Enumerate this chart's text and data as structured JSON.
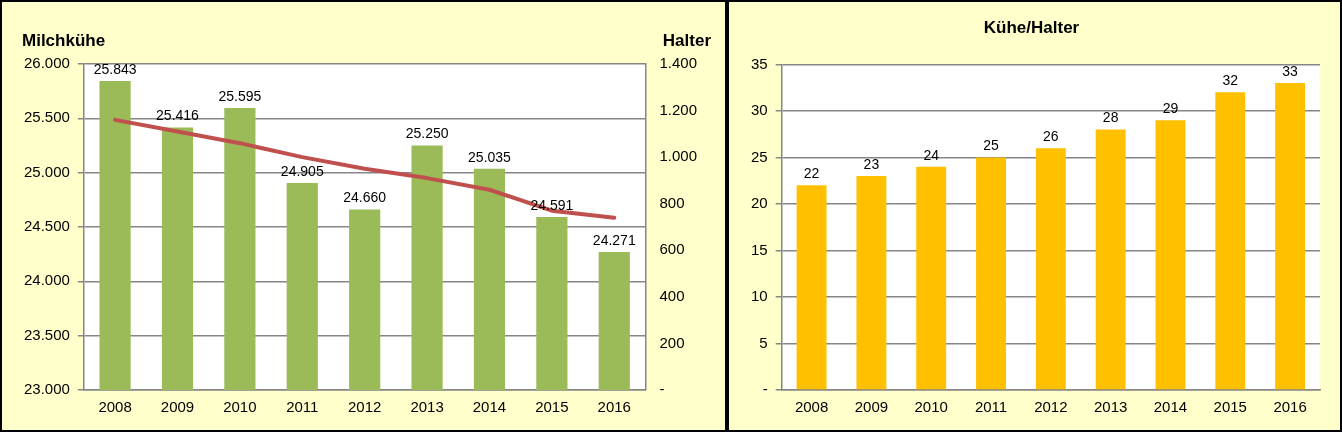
{
  "chart_data": [
    {
      "type": "bar",
      "ylabel": "Milchkühe",
      "y2label": "Halter",
      "categories": [
        "2008",
        "2009",
        "2010",
        "2011",
        "2012",
        "2013",
        "2014",
        "2015",
        "2016"
      ],
      "series": [
        {
          "type": "bar",
          "color": "#9bbb59",
          "values": [
            25843,
            25416,
            25595,
            24905,
            24660,
            25250,
            25035,
            24591,
            24271
          ],
          "value_labels": [
            "25.843",
            "25.416",
            "25.595",
            "24.905",
            "24.660",
            "25.250",
            "25.035",
            "24.591",
            "24.271"
          ]
        },
        {
          "type": "line",
          "axis": "y2",
          "color": "#c0504d",
          "values": [
            1160,
            1110,
            1060,
            1000,
            950,
            910,
            860,
            770,
            740
          ]
        }
      ],
      "ylim": [
        23000,
        26000
      ],
      "yticks": [
        {
          "value": 23000,
          "label": "23.000"
        },
        {
          "value": 23500,
          "label": "23.500"
        },
        {
          "value": 24000,
          "label": "24.000"
        },
        {
          "value": 24500,
          "label": "24.500"
        },
        {
          "value": 25000,
          "label": "25.000"
        },
        {
          "value": 25500,
          "label": "25.500"
        },
        {
          "value": 26000,
          "label": "26.000"
        }
      ],
      "y2lim": [
        0,
        1400
      ],
      "y2ticks": [
        {
          "value": 0,
          "label": "-"
        },
        200,
        400,
        600,
        800,
        {
          "value": 1000,
          "label": "1.000"
        },
        {
          "value": 1200,
          "label": "1.200"
        },
        {
          "value": 1400,
          "label": "1.400"
        }
      ],
      "grid": "y",
      "legend": false,
      "marker": "none"
    },
    {
      "type": "bar",
      "title": "Kühe/Halter",
      "categories": [
        "2008",
        "2009",
        "2010",
        "2011",
        "2012",
        "2013",
        "2014",
        "2015",
        "2016"
      ],
      "values": [
        22,
        23,
        24,
        25,
        26,
        28,
        29,
        32,
        33
      ],
      "color": "#ffc000",
      "data_labels": true,
      "ylim": [
        0,
        35
      ],
      "yticks": [
        {
          "value": 0,
          "label": "-"
        },
        5,
        10,
        15,
        20,
        25,
        30,
        35
      ],
      "grid": "y",
      "legend": false
    }
  ]
}
